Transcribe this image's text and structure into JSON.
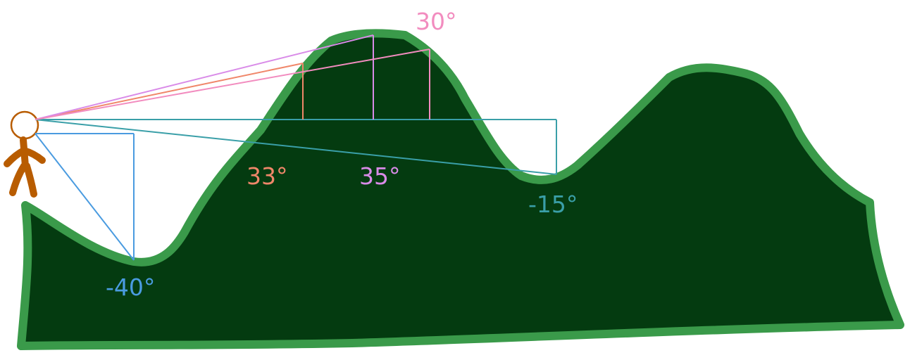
{
  "colors": {
    "terrain_fill": "#043b10",
    "terrain_outline": "#3a9a4a",
    "person": "#b85c00",
    "background": "#ffffff"
  },
  "angles": [
    {
      "id": "angle-30",
      "text": "30°",
      "color": "#f28cbf"
    },
    {
      "id": "angle-33",
      "text": "33°",
      "color": "#f0876a"
    },
    {
      "id": "angle-35",
      "text": "35°",
      "color": "#d98be8"
    },
    {
      "id": "angle-minus-15",
      "text": "-15°",
      "color": "#3a9fa8"
    },
    {
      "id": "angle-minus-40",
      "text": "-40°",
      "color": "#4a9be0"
    }
  ]
}
